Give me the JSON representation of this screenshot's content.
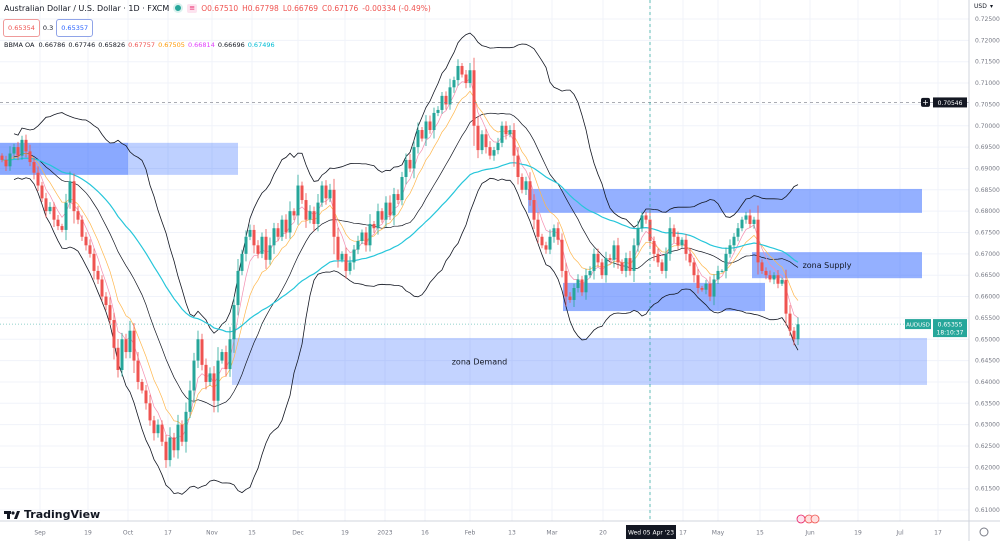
{
  "header": {
    "title": "Australian Dollar / U.S. Dollar · 1D · FXCM",
    "ohlc": {
      "o": "O0.67510",
      "h": "H0.67798",
      "l": "L0.66769",
      "c": "C0.67176",
      "chg": "-0.00334 (-0.49%)"
    },
    "sell_price": "0.65354",
    "spread": "0.3",
    "buy_price": "0.65357"
  },
  "indicator": {
    "name": "BBMA OA",
    "values": [
      {
        "v": "0.66786",
        "color": "#131722"
      },
      {
        "v": "0.67746",
        "color": "#131722"
      },
      {
        "v": "0.65826",
        "color": "#131722"
      },
      {
        "v": "0.67757",
        "color": "#ef5350"
      },
      {
        "v": "0.67505",
        "color": "#ff9800"
      },
      {
        "v": "0.66814",
        "color": "#e040fb"
      },
      {
        "v": "0.66696",
        "color": "#131722"
      },
      {
        "v": "0.67496",
        "color": "#00bcd4"
      }
    ]
  },
  "brand": "TradingView",
  "price_axis": {
    "currency": "USD",
    "crosshair_price": "0.70546",
    "last_symbol": "AUDUSD",
    "last_price": "0.65355",
    "countdown": "18:10:37"
  },
  "time_axis": [
    "Sep",
    "19",
    "Oct",
    "17",
    "Nov",
    "15",
    "Dec",
    "19",
    "2023",
    "16",
    "Feb",
    "13",
    "Mar",
    "20",
    "Wed 05 Apr '23",
    "17",
    "May",
    "15",
    "Jun",
    "19",
    "Jul",
    "17"
  ],
  "colors": {
    "up": "#26a69a",
    "down": "#ef5350",
    "zone": "#2962ff",
    "bands": "#131722",
    "ema_fast": "#f48fb1",
    "ema_mid": "#ffb74d",
    "ema_slow": "#26c6da"
  },
  "chart_data": {
    "type": "candlestick",
    "symbol": "AUDUSD",
    "timeframe": "1D",
    "ylim": [
      0.6075,
      0.7275
    ],
    "yticks": [
      "0.72500",
      "0.72000",
      "0.71500",
      "0.71000",
      "0.70500",
      "0.70000",
      "0.69500",
      "0.69000",
      "0.68500",
      "0.68000",
      "0.67500",
      "0.67000",
      "0.66500",
      "0.66000",
      "0.65500",
      "0.65000",
      "0.64500",
      "0.64000",
      "0.63500",
      "0.63000",
      "0.62500",
      "0.62000",
      "0.61500",
      "0.61000"
    ],
    "closes": [
      0.692,
      0.6905,
      0.6935,
      0.695,
      0.693,
      0.6967,
      0.694,
      0.6915,
      0.689,
      0.686,
      0.683,
      0.68,
      0.681,
      0.678,
      0.6765,
      0.6756,
      0.682,
      0.687,
      0.68,
      0.678,
      0.674,
      0.672,
      0.67,
      0.666,
      0.664,
      0.66,
      0.658,
      0.6545,
      0.648,
      0.6428,
      0.65,
      0.647,
      0.652,
      0.645,
      0.64,
      0.638,
      0.635,
      0.631,
      0.628,
      0.63,
      0.626,
      0.6217,
      0.627,
      0.624,
      0.63,
      0.626,
      0.633,
      0.638,
      0.645,
      0.65,
      0.644,
      0.64,
      0.642,
      0.6356,
      0.645,
      0.647,
      0.643,
      0.65,
      0.658,
      0.666,
      0.67,
      0.674,
      0.6756,
      0.672,
      0.67,
      0.674,
      0.6686,
      0.672,
      0.676,
      0.674,
      0.678,
      0.675,
      0.68,
      0.679,
      0.686,
      0.6826,
      0.678,
      0.68,
      0.677,
      0.682,
      0.686,
      0.683,
      0.685,
      0.674,
      0.6686,
      0.67,
      0.666,
      0.668,
      0.671,
      0.673,
      0.675,
      0.672,
      0.677,
      0.676,
      0.68,
      0.678,
      0.682,
      0.679,
      0.684,
      0.6826,
      0.688,
      0.692,
      0.69,
      0.695,
      0.699,
      0.697,
      0.701,
      0.699,
      0.703,
      0.7037,
      0.707,
      0.705,
      0.709,
      0.7107,
      0.714,
      0.712,
      0.71,
      0.713,
      0.7,
      0.6943,
      0.698,
      0.695,
      0.693,
      0.6943,
      0.696,
      0.7,
      0.698,
      0.699,
      0.693,
      0.688,
      0.685,
      0.687,
      0.6826,
      0.678,
      0.674,
      0.672,
      0.671,
      0.674,
      0.676,
      0.6733,
      0.666,
      0.66,
      0.6592,
      0.662,
      0.664,
      0.661,
      0.665,
      0.666,
      0.67,
      0.668,
      0.665,
      0.669,
      0.6686,
      0.672,
      0.668,
      0.666,
      0.669,
      0.666,
      0.672,
      0.676,
      0.679,
      0.678,
      0.673,
      0.67,
      0.668,
      0.666,
      0.67,
      0.676,
      0.674,
      0.672,
      0.6733,
      0.67,
      0.668,
      0.665,
      0.662,
      0.6616,
      0.663,
      0.66,
      0.664,
      0.666,
      0.666,
      0.67,
      0.672,
      0.674,
      0.676,
      0.678,
      0.679,
      0.677,
      0.678,
      0.668,
      0.666,
      0.665,
      0.664,
      0.665,
      0.663,
      0.6639,
      0.656,
      0.652,
      0.65,
      0.6535
    ],
    "zones": [
      {
        "name": "",
        "top": 0.696,
        "bottom": 0.6885,
        "style": "split"
      },
      {
        "name": "",
        "top": 0.6852,
        "bottom": 0.6796,
        "style": "solid"
      },
      {
        "name": "zona Supply",
        "top": 0.6704,
        "bottom": 0.6643,
        "style": "solid"
      },
      {
        "name": "",
        "top": 0.6632,
        "bottom": 0.6566,
        "style": "solid"
      },
      {
        "name": "zona Demand",
        "top": 0.6503,
        "bottom": 0.6393,
        "style": "light"
      }
    ],
    "horizontal_line": 0.70546,
    "vertical_line_label": "Wed 05 Apr '23",
    "grid": true
  }
}
